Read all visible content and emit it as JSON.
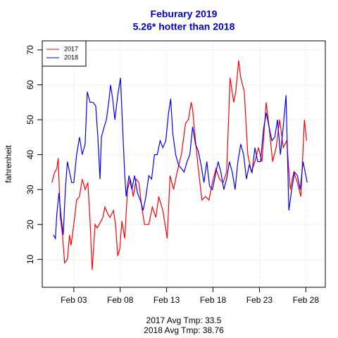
{
  "chart_data": {
    "type": "line",
    "title": "Feburary 2019",
    "subtitle": "5.26* hotter than 2018",
    "y_label": "fahrenheit",
    "annotations": [
      "2017 Avg Tmp: 33.5",
      "2018 Avg Tmp: 38.76"
    ],
    "xlim": [
      -0.4,
      30.1
    ],
    "ylim": [
      2,
      72.6
    ],
    "xticks": [
      {
        "value": 3,
        "label": "Feb 03"
      },
      {
        "value": 8,
        "label": "Feb 08"
      },
      {
        "value": 13,
        "label": "Feb 13"
      },
      {
        "value": 18,
        "label": "Feb 18"
      },
      {
        "value": 23,
        "label": "Feb 23"
      },
      {
        "value": 28,
        "label": "Feb 28"
      }
    ],
    "yticks": [
      10,
      20,
      30,
      40,
      50,
      60,
      70
    ],
    "grid": true,
    "legend": "top-left",
    "series": [
      {
        "name": "2017",
        "color": "#ff0000",
        "x": [
          0.64,
          0.94,
          1.17,
          1.32,
          1.55,
          1.78,
          2.01,
          2.31,
          2.54,
          2.7,
          3.0,
          3.3,
          3.61,
          3.91,
          4.22,
          4.52,
          4.75,
          4.98,
          5.29,
          5.52,
          5.74,
          6.13,
          6.35,
          6.66,
          6.89,
          7.27,
          7.5,
          7.73,
          7.95,
          8.18,
          8.49,
          8.79,
          9.1,
          9.4,
          9.71,
          10.01,
          10.32,
          10.62,
          11.08,
          11.46,
          11.84,
          12.15,
          12.6,
          13.06,
          13.37,
          13.75,
          14.13,
          14.59,
          15.04,
          15.35,
          15.65,
          15.8,
          16.11,
          16.41,
          16.8,
          17.18,
          17.56,
          17.94,
          18.32,
          18.7,
          19.08,
          19.46,
          19.84,
          20.23,
          20.45,
          20.76,
          20.99,
          21.37,
          21.75,
          22.13,
          22.51,
          22.89,
          23.27,
          23.73,
          24.04,
          24.42,
          24.8,
          25.18,
          25.56,
          25.94,
          26.32,
          26.7,
          27.09,
          27.47,
          27.85,
          28.08
        ],
        "values": [
          32,
          35,
          36,
          39,
          22,
          17,
          9,
          10,
          17,
          14,
          20,
          27,
          28,
          33,
          30,
          32,
          21,
          7,
          20,
          19,
          20,
          22,
          25,
          23,
          22,
          24,
          20,
          11,
          13,
          21,
          16,
          30,
          33,
          28,
          33,
          32,
          25,
          20,
          20,
          25,
          22,
          28,
          24,
          16,
          34,
          30,
          35,
          40,
          49,
          50,
          55,
          53,
          44,
          36,
          27,
          28,
          27,
          32,
          36,
          33,
          32,
          35,
          62,
          55,
          58,
          67,
          62,
          58,
          40,
          35,
          38,
          42,
          38,
          55,
          48,
          38,
          42,
          50,
          42,
          44,
          30,
          35,
          32,
          28,
          50,
          44
        ]
      },
      {
        "name": "2018",
        "color": "#0000ff",
        "x": [
          0.79,
          1.02,
          1.17,
          1.4,
          1.63,
          1.86,
          2.09,
          2.31,
          2.54,
          2.77,
          3.0,
          3.3,
          3.61,
          3.91,
          4.22,
          4.45,
          4.75,
          5.06,
          5.36,
          5.59,
          5.82,
          5.97,
          6.28,
          6.51,
          6.81,
          6.96,
          7.19,
          7.42,
          7.73,
          8.03,
          8.26,
          8.49,
          8.64,
          8.95,
          9.25,
          9.55,
          9.86,
          10.16,
          10.47,
          10.77,
          11.08,
          11.38,
          11.69,
          11.99,
          12.3,
          12.6,
          12.91,
          13.21,
          13.44,
          13.67,
          13.98,
          14.28,
          14.59,
          14.89,
          15.2,
          15.5,
          15.8,
          16.11,
          16.41,
          16.72,
          17.02,
          17.33,
          17.63,
          17.94,
          18.24,
          18.55,
          18.85,
          19.16,
          19.46,
          19.77,
          20.07,
          20.38,
          20.68,
          20.99,
          21.29,
          21.6,
          21.9,
          22.21,
          22.51,
          22.82,
          23.12,
          23.43,
          23.73,
          24.04,
          24.34,
          24.65,
          24.95,
          25.26,
          25.56,
          25.87,
          26.17,
          26.48,
          26.78,
          27.09,
          27.39,
          27.7,
          28.0,
          28.15
        ],
        "values": [
          17,
          16,
          23,
          29,
          22,
          17,
          30,
          38,
          35,
          32,
          32,
          40,
          45,
          40,
          43,
          58,
          55,
          55,
          54,
          45,
          33,
          45,
          48,
          50,
          56,
          60,
          56,
          50,
          57,
          62,
          48,
          34,
          28,
          34,
          30,
          34,
          29,
          27,
          24,
          28,
          34,
          33,
          40,
          40,
          44,
          42,
          44,
          52,
          56,
          46,
          40,
          37,
          36,
          35,
          38,
          40,
          48,
          43,
          41,
          37,
          32,
          38,
          31,
          30,
          34,
          38,
          35,
          30,
          33,
          38,
          35,
          30,
          38,
          43,
          40,
          33,
          37,
          35,
          42,
          38,
          38,
          47,
          52,
          48,
          44,
          45,
          50,
          40,
          48,
          57,
          24,
          30,
          35,
          34,
          30,
          38,
          34,
          32
        ]
      }
    ]
  }
}
